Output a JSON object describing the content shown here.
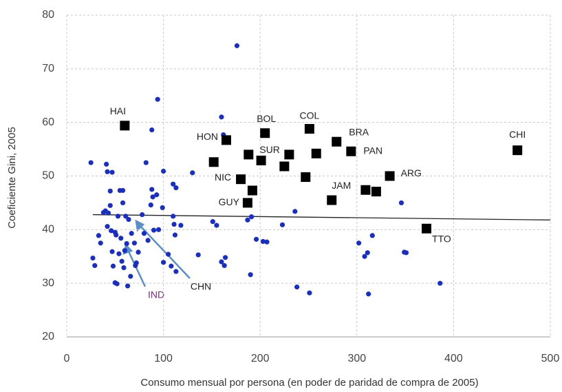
{
  "chart_data": {
    "type": "scatter",
    "x_label": "Consumo mensual por persona (en poder de paridad de compra de 2005)",
    "y_label": "Coeficiente Gini, 2005",
    "xlim": [
      0,
      500
    ],
    "ylim": [
      20,
      80
    ],
    "xticks": [
      0,
      100,
      200,
      300,
      400,
      500
    ],
    "yticks": [
      20,
      30,
      40,
      50,
      60,
      70,
      80
    ],
    "grid": true,
    "series": [
      {
        "color": "#1a2fc0",
        "marker": "circle",
        "x": [
          25,
          27,
          29,
          33,
          35,
          38,
          40,
          41,
          42,
          42,
          43,
          45,
          45,
          47,
          46,
          47,
          48,
          50,
          50,
          51,
          52,
          53,
          54,
          55,
          56,
          57,
          58,
          58,
          59,
          60,
          61,
          62,
          63,
          64,
          66,
          67,
          70,
          71,
          72,
          74,
          78,
          80,
          82,
          84,
          87,
          88,
          88,
          89,
          90,
          93,
          94,
          95,
          99,
          100,
          100,
          105,
          108,
          110,
          110,
          111,
          112,
          113,
          118,
          113,
          130,
          136,
          151,
          155,
          160,
          160,
          162,
          163,
          164,
          176,
          187,
          190,
          191,
          196,
          203,
          207,
          223,
          236,
          238,
          251,
          302,
          308,
          311,
          312,
          316,
          346,
          349,
          351,
          386
        ],
        "values": [
          52.5,
          34.7,
          33.3,
          38.9,
          37.5,
          43.2,
          43.5,
          52.2,
          40.6,
          50.8,
          43.1,
          47.2,
          44.5,
          50.7,
          39.8,
          35.9,
          33.2,
          39.5,
          30.1,
          39,
          29.9,
          42.5,
          35.5,
          47.3,
          38.4,
          34.1,
          47.3,
          45,
          32.9,
          36.1,
          42.5,
          37.4,
          29.5,
          41.9,
          31.3,
          39.3,
          37.5,
          33.3,
          33.8,
          35.8,
          42.8,
          39.3,
          52.5,
          38,
          44.6,
          47.5,
          58.6,
          46.1,
          39.9,
          46.5,
          64.3,
          40,
          44.1,
          33.9,
          50.9,
          35.4,
          33.2,
          48.5,
          42.5,
          41,
          39,
          47.8,
          40.8,
          32.2,
          50.6,
          35.3,
          41.5,
          40.8,
          61,
          34,
          57.7,
          33.3,
          34.8,
          74.3,
          41.8,
          31.6,
          42.4,
          38.2,
          37.8,
          37.7,
          40.9,
          43.4,
          29.3,
          28.2,
          37.5,
          35,
          35.7,
          28,
          38.9,
          45,
          35.8,
          35.7,
          30
        ]
      },
      {
        "color": "#000000",
        "marker": "square",
        "x": [
          60,
          165,
          205,
          251,
          279,
          294,
          466,
          188,
          180,
          187,
          274,
          334,
          372,
          152,
          192,
          201,
          225,
          230,
          247,
          258,
          309,
          320
        ],
        "values": [
          59.4,
          56.7,
          58,
          58.8,
          56.4,
          54.6,
          54.8,
          54,
          49.4,
          45,
          45.5,
          50,
          40.2,
          52.6,
          47.3,
          52.9,
          51.8,
          54,
          49.8,
          54.2,
          47.4,
          47.1
        ],
        "labels": [
          "HAI",
          "HON",
          "BOL",
          "COL",
          "BRA",
          "PAN",
          "CHI",
          "SUR",
          "NIC",
          "GUY",
          "JAM",
          "ARG",
          "TTO",
          null,
          null,
          null,
          null,
          null,
          null,
          null,
          null,
          null
        ]
      }
    ],
    "trendline": {
      "color": "#222222",
      "x": [
        27,
        500
      ],
      "values": [
        42.8,
        41.8
      ]
    },
    "annotations": [
      "IND",
      "CHN"
    ]
  }
}
